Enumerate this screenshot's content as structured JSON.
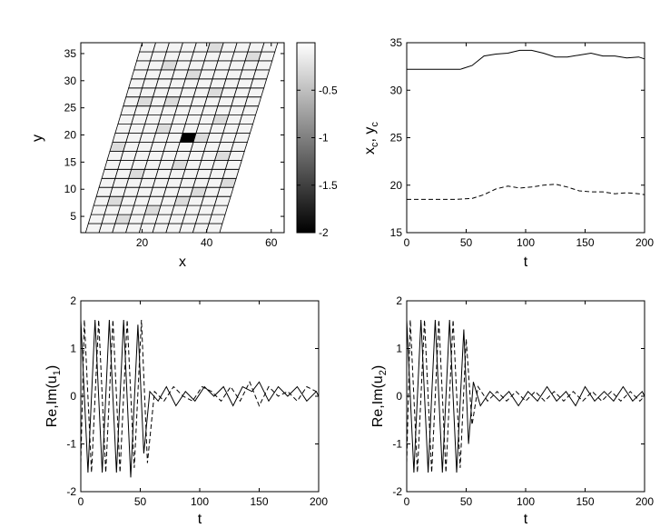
{
  "chart_data": [
    {
      "type": "heatmap",
      "xlabel": "x",
      "ylabel": "y",
      "xticks": [
        "20",
        "40",
        "60"
      ],
      "yticks": [
        "5",
        "10",
        "15",
        "20",
        "25",
        "30",
        "35"
      ],
      "xlim": [
        1,
        64
      ],
      "ylim": [
        2,
        37
      ],
      "colorbar_ticks": [
        "-0.5",
        "-1",
        "-1.5",
        "-2"
      ],
      "colorbar_range": [
        -2,
        0
      ],
      "grid": {
        "cols": 10,
        "rows": 21
      },
      "light_cells": [
        [
          1,
          3
        ],
        [
          4,
          2
        ],
        [
          6,
          3
        ],
        [
          2,
          6
        ],
        [
          5,
          7
        ],
        [
          8,
          8
        ],
        [
          3,
          11
        ],
        [
          7,
          12
        ],
        [
          1,
          14
        ],
        [
          6,
          15
        ],
        [
          4,
          17
        ],
        [
          2,
          18
        ],
        [
          8,
          19
        ],
        [
          5,
          20
        ],
        [
          0,
          9
        ],
        [
          9,
          5
        ],
        [
          3,
          14
        ],
        [
          7,
          4
        ],
        [
          2,
          1
        ],
        [
          6,
          10
        ]
      ],
      "dark_cell": {
        "col": 5,
        "row": 10,
        "value": -2
      }
    },
    {
      "type": "line",
      "xlabel": "t",
      "ylabel": "x<sub>c</sub> , y<sub>c</sub>",
      "ylabel_parts": [
        "x",
        "c",
        ", y",
        "c"
      ],
      "xticks": [
        "0",
        "50",
        "100",
        "150",
        "200"
      ],
      "yticks": [
        "15",
        "20",
        "25",
        "30",
        "35"
      ],
      "xlim": [
        0,
        200
      ],
      "ylim": [
        15,
        35
      ],
      "series": [
        {
          "style": "solid",
          "x": [
            0,
            45,
            55,
            65,
            75,
            85,
            95,
            105,
            115,
            125,
            135,
            145,
            155,
            165,
            175,
            185,
            195,
            200
          ],
          "y": [
            32.2,
            32.2,
            32.6,
            33.6,
            33.8,
            33.9,
            34.2,
            34.2,
            33.9,
            33.5,
            33.5,
            33.7,
            33.9,
            33.6,
            33.6,
            33.4,
            33.5,
            33.3
          ]
        },
        {
          "style": "dashed",
          "x": [
            0,
            40,
            55,
            65,
            75,
            85,
            95,
            105,
            115,
            125,
            135,
            145,
            155,
            165,
            175,
            185,
            195,
            200
          ],
          "y": [
            18.5,
            18.5,
            18.6,
            19.0,
            19.6,
            19.9,
            19.7,
            19.8,
            20.0,
            20.1,
            19.8,
            19.4,
            19.3,
            19.3,
            19.1,
            19.2,
            19.1,
            19.0
          ]
        }
      ]
    },
    {
      "type": "line",
      "xlabel": "t",
      "ylabel_parts": [
        "Re,Im(u",
        "1",
        ")"
      ],
      "xticks": [
        "0",
        "50",
        "100",
        "150",
        "200"
      ],
      "yticks": [
        "-2",
        "-1",
        "0",
        "1",
        "2"
      ],
      "xlim": [
        0,
        200
      ],
      "ylim": [
        -2,
        2
      ],
      "series": [
        {
          "style": "solid",
          "x": [
            0,
            6,
            12,
            18,
            24,
            30,
            36,
            42,
            48,
            53,
            58,
            65,
            72,
            80,
            88,
            96,
            104,
            112,
            120,
            128,
            136,
            144,
            150,
            158,
            166,
            174,
            182,
            190,
            198,
            200
          ],
          "y": [
            1.6,
            -1.6,
            1.6,
            -1.6,
            1.6,
            -1.6,
            1.6,
            -1.7,
            1.5,
            -1.2,
            0.1,
            -0.1,
            0.2,
            -0.2,
            0.1,
            -0.1,
            0.2,
            0.0,
            0.2,
            -0.2,
            0.2,
            0.1,
            0.3,
            -0.1,
            0.2,
            0.0,
            0.2,
            -0.1,
            0.1,
            0.0
          ]
        },
        {
          "style": "dashed",
          "x": [
            0,
            3,
            9,
            15,
            21,
            27,
            33,
            39,
            45,
            51,
            56,
            62,
            70,
            78,
            86,
            94,
            102,
            110,
            118,
            126,
            134,
            142,
            150,
            158,
            166,
            174,
            182,
            190,
            198,
            200
          ],
          "y": [
            -1.4,
            1.6,
            -1.6,
            1.6,
            -1.6,
            1.6,
            -1.6,
            1.6,
            -1.5,
            1.6,
            -1.4,
            0.1,
            -0.1,
            0.2,
            0.0,
            -0.1,
            0.2,
            0.1,
            -0.1,
            0.2,
            -0.1,
            0.3,
            -0.2,
            0.2,
            0.0,
            0.1,
            -0.1,
            0.2,
            0.1,
            0.0
          ]
        }
      ]
    },
    {
      "type": "line",
      "xlabel": "t",
      "ylabel_parts": [
        "Re,Im(u",
        "2",
        ")"
      ],
      "xticks": [
        "0",
        "50",
        "100",
        "150",
        "200"
      ],
      "yticks": [
        "-2",
        "-1",
        "0",
        "1",
        "2"
      ],
      "xlim": [
        0,
        200
      ],
      "ylim": [
        -2,
        2
      ],
      "series": [
        {
          "style": "solid",
          "x": [
            0,
            6,
            12,
            18,
            24,
            30,
            36,
            42,
            48,
            52,
            56,
            62,
            70,
            78,
            86,
            94,
            102,
            110,
            118,
            126,
            134,
            142,
            150,
            158,
            166,
            174,
            182,
            190,
            198,
            200
          ],
          "y": [
            1.6,
            -1.6,
            1.6,
            -1.6,
            1.6,
            -1.6,
            1.6,
            -1.6,
            1.4,
            -1.0,
            0.3,
            -0.2,
            0.1,
            -0.1,
            0.1,
            -0.2,
            0.1,
            -0.1,
            0.2,
            -0.1,
            0.1,
            -0.2,
            0.2,
            -0.1,
            0.1,
            -0.1,
            0.2,
            -0.1,
            0.1,
            0.0
          ]
        },
        {
          "style": "dashed",
          "x": [
            0,
            3,
            9,
            15,
            21,
            27,
            33,
            39,
            45,
            50,
            55,
            60,
            68,
            76,
            84,
            92,
            100,
            108,
            116,
            124,
            132,
            140,
            148,
            156,
            164,
            172,
            180,
            188,
            196,
            200
          ],
          "y": [
            -1.4,
            1.6,
            -1.6,
            1.6,
            -1.6,
            1.6,
            -1.6,
            1.6,
            -1.5,
            1.2,
            -0.6,
            0.2,
            -0.1,
            0.1,
            -0.1,
            0.1,
            -0.1,
            0.1,
            -0.1,
            0.1,
            -0.1,
            0.1,
            -0.1,
            0.1,
            -0.1,
            0.1,
            -0.1,
            0.1,
            -0.1,
            0.0
          ]
        }
      ]
    }
  ]
}
